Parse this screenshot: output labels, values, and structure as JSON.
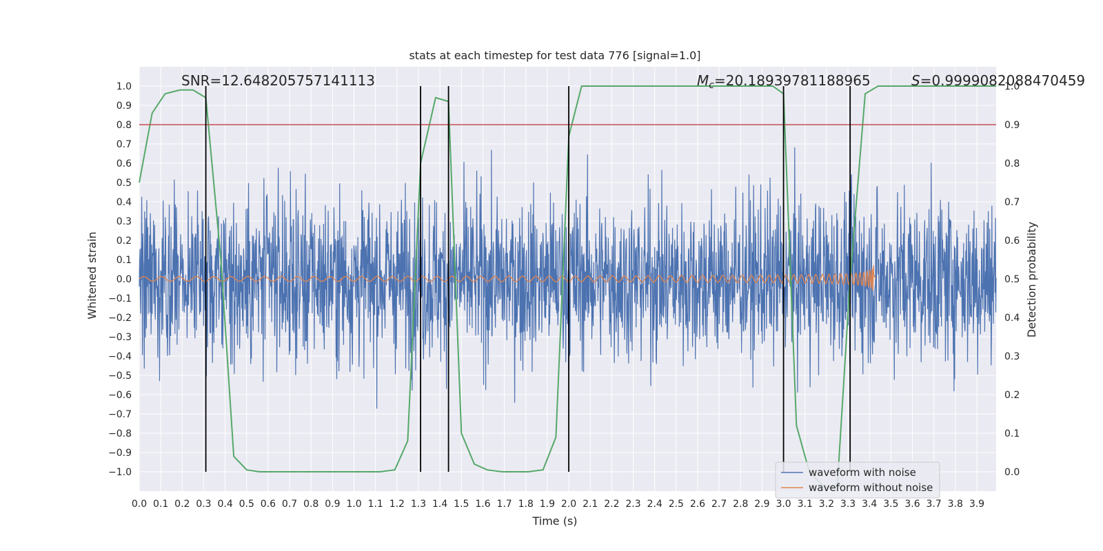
{
  "chart_data": {
    "type": "line",
    "title": "stats at each timestep for test data 776 [signal=1.0]",
    "xlabel": "Time (s)",
    "ylabel": "Whitened strain",
    "y2label": "Detection probability",
    "xlim": [
      0.0,
      3.99
    ],
    "ylim": [
      -1.1,
      1.1
    ],
    "y2lim": [
      -0.05,
      1.05
    ],
    "x_ticks": [
      "0.0",
      "0.1",
      "0.2",
      "0.3",
      "0.4",
      "0.5",
      "0.6",
      "0.7",
      "0.8",
      "0.9",
      "1.0",
      "1.1",
      "1.2",
      "1.3",
      "1.4",
      "1.5",
      "1.6",
      "1.7",
      "1.8",
      "1.9",
      "2.0",
      "2.1",
      "2.2",
      "2.3",
      "2.4",
      "2.5",
      "2.6",
      "2.7",
      "2.8",
      "2.9",
      "3.0",
      "3.1",
      "3.2",
      "3.3",
      "3.4",
      "3.5",
      "3.6",
      "3.7",
      "3.8",
      "3.9"
    ],
    "y_ticks": [
      "1.0",
      "0.9",
      "0.8",
      "0.7",
      "0.6",
      "0.5",
      "0.4",
      "0.3",
      "0.2",
      "0.1",
      "0.0",
      "−0.1",
      "−0.2",
      "−0.3",
      "−0.4",
      "−0.5",
      "−0.6",
      "−0.7",
      "−0.8",
      "−0.9",
      "−1.0"
    ],
    "y2_ticks": [
      "1.0",
      "0.9",
      "0.8",
      "0.7",
      "0.6",
      "0.5",
      "0.4",
      "0.3",
      "0.2",
      "0.1",
      "0.0"
    ],
    "grid": true,
    "legend_position": "bottom-right",
    "annotations": {
      "snr": "SNR=12.648205757141113",
      "mc_symbol": "M",
      "mc_sub": "c",
      "mc_value": "=20.18939781188965",
      "s_symbol": "S",
      "s_value": "=0.9999082088470459"
    },
    "threshold_line": {
      "y2": 0.9,
      "color": "#c44e52"
    },
    "vertical_lines_x": [
      0.31,
      1.31,
      1.44,
      2.0,
      3.0,
      3.31
    ],
    "series": [
      {
        "name": "waveform with noise",
        "color": "#4c72b0",
        "axis": "left",
        "description": "dense gaussian-like noise spanning roughly -1.0 to 1.0"
      },
      {
        "name": "waveform without noise",
        "color": "#dd8452",
        "axis": "left",
        "description": "chirp with increasing amplitude and frequency, merger near 3.42 s"
      },
      {
        "name": "",
        "color": "#55a868",
        "axis": "right",
        "x": [
          0.0,
          0.06,
          0.12,
          0.19,
          0.25,
          0.31,
          0.38,
          0.44,
          0.5,
          0.56,
          0.62,
          1.12,
          1.19,
          1.25,
          1.31,
          1.38,
          1.44,
          1.5,
          1.56,
          1.62,
          1.69,
          1.75,
          1.81,
          1.88,
          1.94,
          2.0,
          2.06,
          2.12,
          2.19,
          2.95,
          3.0,
          3.06,
          3.12,
          3.19,
          3.25,
          3.31,
          3.38,
          3.44,
          3.5,
          3.99
        ],
        "y": [
          0.75,
          0.93,
          0.98,
          0.99,
          0.99,
          0.97,
          0.55,
          0.04,
          0.005,
          0.0,
          0.0,
          0.0,
          0.005,
          0.08,
          0.8,
          0.97,
          0.96,
          0.1,
          0.02,
          0.005,
          0.0,
          0.0,
          0.0,
          0.005,
          0.09,
          0.87,
          1.0,
          1.0,
          1.0,
          1.0,
          0.98,
          0.12,
          0.0,
          -0.04,
          -0.04,
          0.5,
          0.98,
          1.0,
          1.0,
          1.0
        ]
      }
    ]
  }
}
